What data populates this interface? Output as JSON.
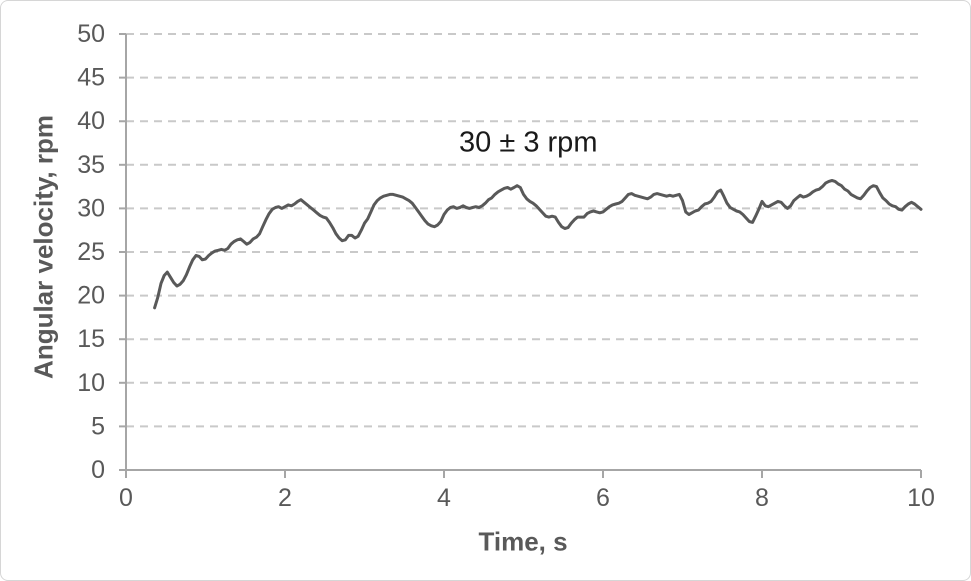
{
  "figure": {
    "background": "#ffffff",
    "border_color": "#d6d6d6"
  },
  "chart_data": {
    "type": "line",
    "title": "",
    "xlabel": "Time, s",
    "ylabel": "Angular velocity, rpm",
    "xlim": [
      0,
      10
    ],
    "ylim": [
      0,
      50
    ],
    "x_ticks": [
      0,
      2,
      4,
      6,
      8,
      10
    ],
    "y_ticks": [
      0,
      5,
      10,
      15,
      20,
      25,
      30,
      35,
      40,
      45,
      50
    ],
    "grid": "horizontal-dashed",
    "legend_position": "none",
    "annotation": {
      "text": "30 ± 3 rpm",
      "at_x": 5.06,
      "at_y": 37.5
    },
    "colors": {
      "line": "#595959",
      "grid": "#c9c9c9",
      "axis": "#a6a6a6",
      "tick_label": "#595959",
      "annotation": "#1a1a1a"
    },
    "series": [
      {
        "name": "angular velocity",
        "points": [
          [
            0.36,
            18.6
          ],
          [
            0.4,
            19.8
          ],
          [
            0.44,
            21.4
          ],
          [
            0.48,
            22.3
          ],
          [
            0.52,
            22.7
          ],
          [
            0.56,
            22.1
          ],
          [
            0.6,
            21.5
          ],
          [
            0.64,
            21.1
          ],
          [
            0.68,
            21.3
          ],
          [
            0.72,
            21.7
          ],
          [
            0.76,
            22.4
          ],
          [
            0.8,
            23.3
          ],
          [
            0.84,
            24.1
          ],
          [
            0.88,
            24.6
          ],
          [
            0.92,
            24.5
          ],
          [
            0.96,
            24.1
          ],
          [
            1.0,
            24.2
          ],
          [
            1.04,
            24.6
          ],
          [
            1.08,
            24.9
          ],
          [
            1.12,
            25.1
          ],
          [
            1.16,
            25.2
          ],
          [
            1.2,
            25.3
          ],
          [
            1.24,
            25.2
          ],
          [
            1.28,
            25.4
          ],
          [
            1.32,
            25.9
          ],
          [
            1.36,
            26.2
          ],
          [
            1.4,
            26.4
          ],
          [
            1.44,
            26.5
          ],
          [
            1.48,
            26.2
          ],
          [
            1.52,
            25.9
          ],
          [
            1.56,
            26.1
          ],
          [
            1.6,
            26.5
          ],
          [
            1.64,
            26.7
          ],
          [
            1.68,
            27.1
          ],
          [
            1.72,
            27.9
          ],
          [
            1.76,
            28.7
          ],
          [
            1.8,
            29.4
          ],
          [
            1.84,
            29.9
          ],
          [
            1.88,
            30.1
          ],
          [
            1.92,
            30.2
          ],
          [
            1.96,
            30.0
          ],
          [
            2.0,
            30.2
          ],
          [
            2.04,
            30.4
          ],
          [
            2.08,
            30.3
          ],
          [
            2.12,
            30.5
          ],
          [
            2.16,
            30.8
          ],
          [
            2.2,
            31.0
          ],
          [
            2.24,
            30.7
          ],
          [
            2.28,
            30.4
          ],
          [
            2.32,
            30.1
          ],
          [
            2.36,
            29.8
          ],
          [
            2.4,
            29.5
          ],
          [
            2.44,
            29.2
          ],
          [
            2.48,
            29.0
          ],
          [
            2.52,
            28.9
          ],
          [
            2.56,
            28.4
          ],
          [
            2.6,
            27.8
          ],
          [
            2.64,
            27.1
          ],
          [
            2.68,
            26.6
          ],
          [
            2.72,
            26.3
          ],
          [
            2.76,
            26.4
          ],
          [
            2.8,
            26.9
          ],
          [
            2.84,
            26.9
          ],
          [
            2.88,
            26.6
          ],
          [
            2.92,
            26.8
          ],
          [
            2.96,
            27.5
          ],
          [
            3.0,
            28.3
          ],
          [
            3.04,
            28.8
          ],
          [
            3.08,
            29.6
          ],
          [
            3.12,
            30.4
          ],
          [
            3.16,
            30.9
          ],
          [
            3.2,
            31.2
          ],
          [
            3.24,
            31.4
          ],
          [
            3.28,
            31.5
          ],
          [
            3.32,
            31.6
          ],
          [
            3.36,
            31.6
          ],
          [
            3.4,
            31.5
          ],
          [
            3.44,
            31.4
          ],
          [
            3.48,
            31.3
          ],
          [
            3.52,
            31.1
          ],
          [
            3.56,
            30.9
          ],
          [
            3.6,
            30.6
          ],
          [
            3.64,
            30.1
          ],
          [
            3.68,
            29.6
          ],
          [
            3.72,
            29.1
          ],
          [
            3.76,
            28.6
          ],
          [
            3.8,
            28.2
          ],
          [
            3.84,
            28.0
          ],
          [
            3.88,
            27.9
          ],
          [
            3.92,
            28.1
          ],
          [
            3.96,
            28.5
          ],
          [
            4.0,
            29.3
          ],
          [
            4.04,
            29.8
          ],
          [
            4.08,
            30.1
          ],
          [
            4.12,
            30.2
          ],
          [
            4.16,
            30.0
          ],
          [
            4.2,
            30.1
          ],
          [
            4.24,
            30.3
          ],
          [
            4.28,
            30.1
          ],
          [
            4.32,
            30.0
          ],
          [
            4.36,
            30.1
          ],
          [
            4.4,
            30.2
          ],
          [
            4.44,
            30.1
          ],
          [
            4.48,
            30.3
          ],
          [
            4.52,
            30.6
          ],
          [
            4.56,
            31.0
          ],
          [
            4.6,
            31.2
          ],
          [
            4.64,
            31.6
          ],
          [
            4.68,
            31.9
          ],
          [
            4.72,
            32.1
          ],
          [
            4.76,
            32.3
          ],
          [
            4.8,
            32.4
          ],
          [
            4.84,
            32.2
          ],
          [
            4.88,
            32.4
          ],
          [
            4.92,
            32.6
          ],
          [
            4.96,
            32.4
          ],
          [
            5.0,
            31.6
          ],
          [
            5.04,
            31.1
          ],
          [
            5.08,
            30.8
          ],
          [
            5.12,
            30.6
          ],
          [
            5.16,
            30.3
          ],
          [
            5.2,
            29.9
          ],
          [
            5.24,
            29.5
          ],
          [
            5.28,
            29.1
          ],
          [
            5.32,
            29.0
          ],
          [
            5.36,
            29.1
          ],
          [
            5.4,
            29.0
          ],
          [
            5.44,
            28.4
          ],
          [
            5.48,
            27.9
          ],
          [
            5.52,
            27.7
          ],
          [
            5.56,
            27.8
          ],
          [
            5.6,
            28.3
          ],
          [
            5.64,
            28.7
          ],
          [
            5.68,
            29.0
          ],
          [
            5.72,
            29.0
          ],
          [
            5.76,
            29.0
          ],
          [
            5.8,
            29.4
          ],
          [
            5.84,
            29.6
          ],
          [
            5.88,
            29.7
          ],
          [
            5.92,
            29.6
          ],
          [
            5.96,
            29.5
          ],
          [
            6.0,
            29.6
          ],
          [
            6.04,
            29.9
          ],
          [
            6.08,
            30.2
          ],
          [
            6.12,
            30.4
          ],
          [
            6.16,
            30.5
          ],
          [
            6.2,
            30.6
          ],
          [
            6.24,
            30.8
          ],
          [
            6.28,
            31.2
          ],
          [
            6.32,
            31.6
          ],
          [
            6.36,
            31.7
          ],
          [
            6.4,
            31.5
          ],
          [
            6.44,
            31.4
          ],
          [
            6.48,
            31.3
          ],
          [
            6.52,
            31.2
          ],
          [
            6.56,
            31.1
          ],
          [
            6.6,
            31.3
          ],
          [
            6.64,
            31.6
          ],
          [
            6.68,
            31.7
          ],
          [
            6.72,
            31.6
          ],
          [
            6.76,
            31.5
          ],
          [
            6.8,
            31.4
          ],
          [
            6.84,
            31.5
          ],
          [
            6.88,
            31.4
          ],
          [
            6.92,
            31.5
          ],
          [
            6.96,
            31.6
          ],
          [
            7.0,
            30.9
          ],
          [
            7.04,
            29.6
          ],
          [
            7.08,
            29.3
          ],
          [
            7.12,
            29.5
          ],
          [
            7.16,
            29.7
          ],
          [
            7.2,
            29.8
          ],
          [
            7.24,
            30.2
          ],
          [
            7.28,
            30.5
          ],
          [
            7.32,
            30.6
          ],
          [
            7.36,
            30.8
          ],
          [
            7.4,
            31.3
          ],
          [
            7.44,
            31.9
          ],
          [
            7.48,
            32.1
          ],
          [
            7.52,
            31.4
          ],
          [
            7.56,
            30.6
          ],
          [
            7.6,
            30.1
          ],
          [
            7.64,
            29.9
          ],
          [
            7.68,
            29.7
          ],
          [
            7.72,
            29.6
          ],
          [
            7.76,
            29.3
          ],
          [
            7.8,
            28.9
          ],
          [
            7.84,
            28.5
          ],
          [
            7.88,
            28.4
          ],
          [
            7.92,
            29.1
          ],
          [
            7.96,
            29.9
          ],
          [
            8.0,
            30.8
          ],
          [
            8.04,
            30.3
          ],
          [
            8.08,
            30.2
          ],
          [
            8.12,
            30.4
          ],
          [
            8.16,
            30.6
          ],
          [
            8.2,
            30.8
          ],
          [
            8.24,
            30.7
          ],
          [
            8.28,
            30.3
          ],
          [
            8.32,
            30.0
          ],
          [
            8.36,
            30.3
          ],
          [
            8.4,
            30.9
          ],
          [
            8.44,
            31.2
          ],
          [
            8.48,
            31.5
          ],
          [
            8.52,
            31.3
          ],
          [
            8.56,
            31.4
          ],
          [
            8.6,
            31.6
          ],
          [
            8.64,
            31.9
          ],
          [
            8.68,
            32.1
          ],
          [
            8.72,
            32.2
          ],
          [
            8.76,
            32.5
          ],
          [
            8.8,
            32.9
          ],
          [
            8.84,
            33.1
          ],
          [
            8.88,
            33.2
          ],
          [
            8.92,
            33.1
          ],
          [
            8.96,
            32.8
          ],
          [
            9.0,
            32.6
          ],
          [
            9.04,
            32.2
          ],
          [
            9.08,
            32.0
          ],
          [
            9.12,
            31.6
          ],
          [
            9.16,
            31.4
          ],
          [
            9.2,
            31.2
          ],
          [
            9.24,
            31.1
          ],
          [
            9.28,
            31.5
          ],
          [
            9.32,
            32.0
          ],
          [
            9.36,
            32.4
          ],
          [
            9.4,
            32.6
          ],
          [
            9.44,
            32.5
          ],
          [
            9.48,
            31.8
          ],
          [
            9.52,
            31.2
          ],
          [
            9.56,
            30.9
          ],
          [
            9.6,
            30.5
          ],
          [
            9.64,
            30.3
          ],
          [
            9.68,
            30.2
          ],
          [
            9.72,
            29.9
          ],
          [
            9.76,
            29.8
          ],
          [
            9.8,
            30.2
          ],
          [
            9.84,
            30.5
          ],
          [
            9.88,
            30.7
          ],
          [
            9.92,
            30.5
          ],
          [
            9.96,
            30.2
          ],
          [
            10.0,
            29.9
          ]
        ]
      }
    ]
  }
}
